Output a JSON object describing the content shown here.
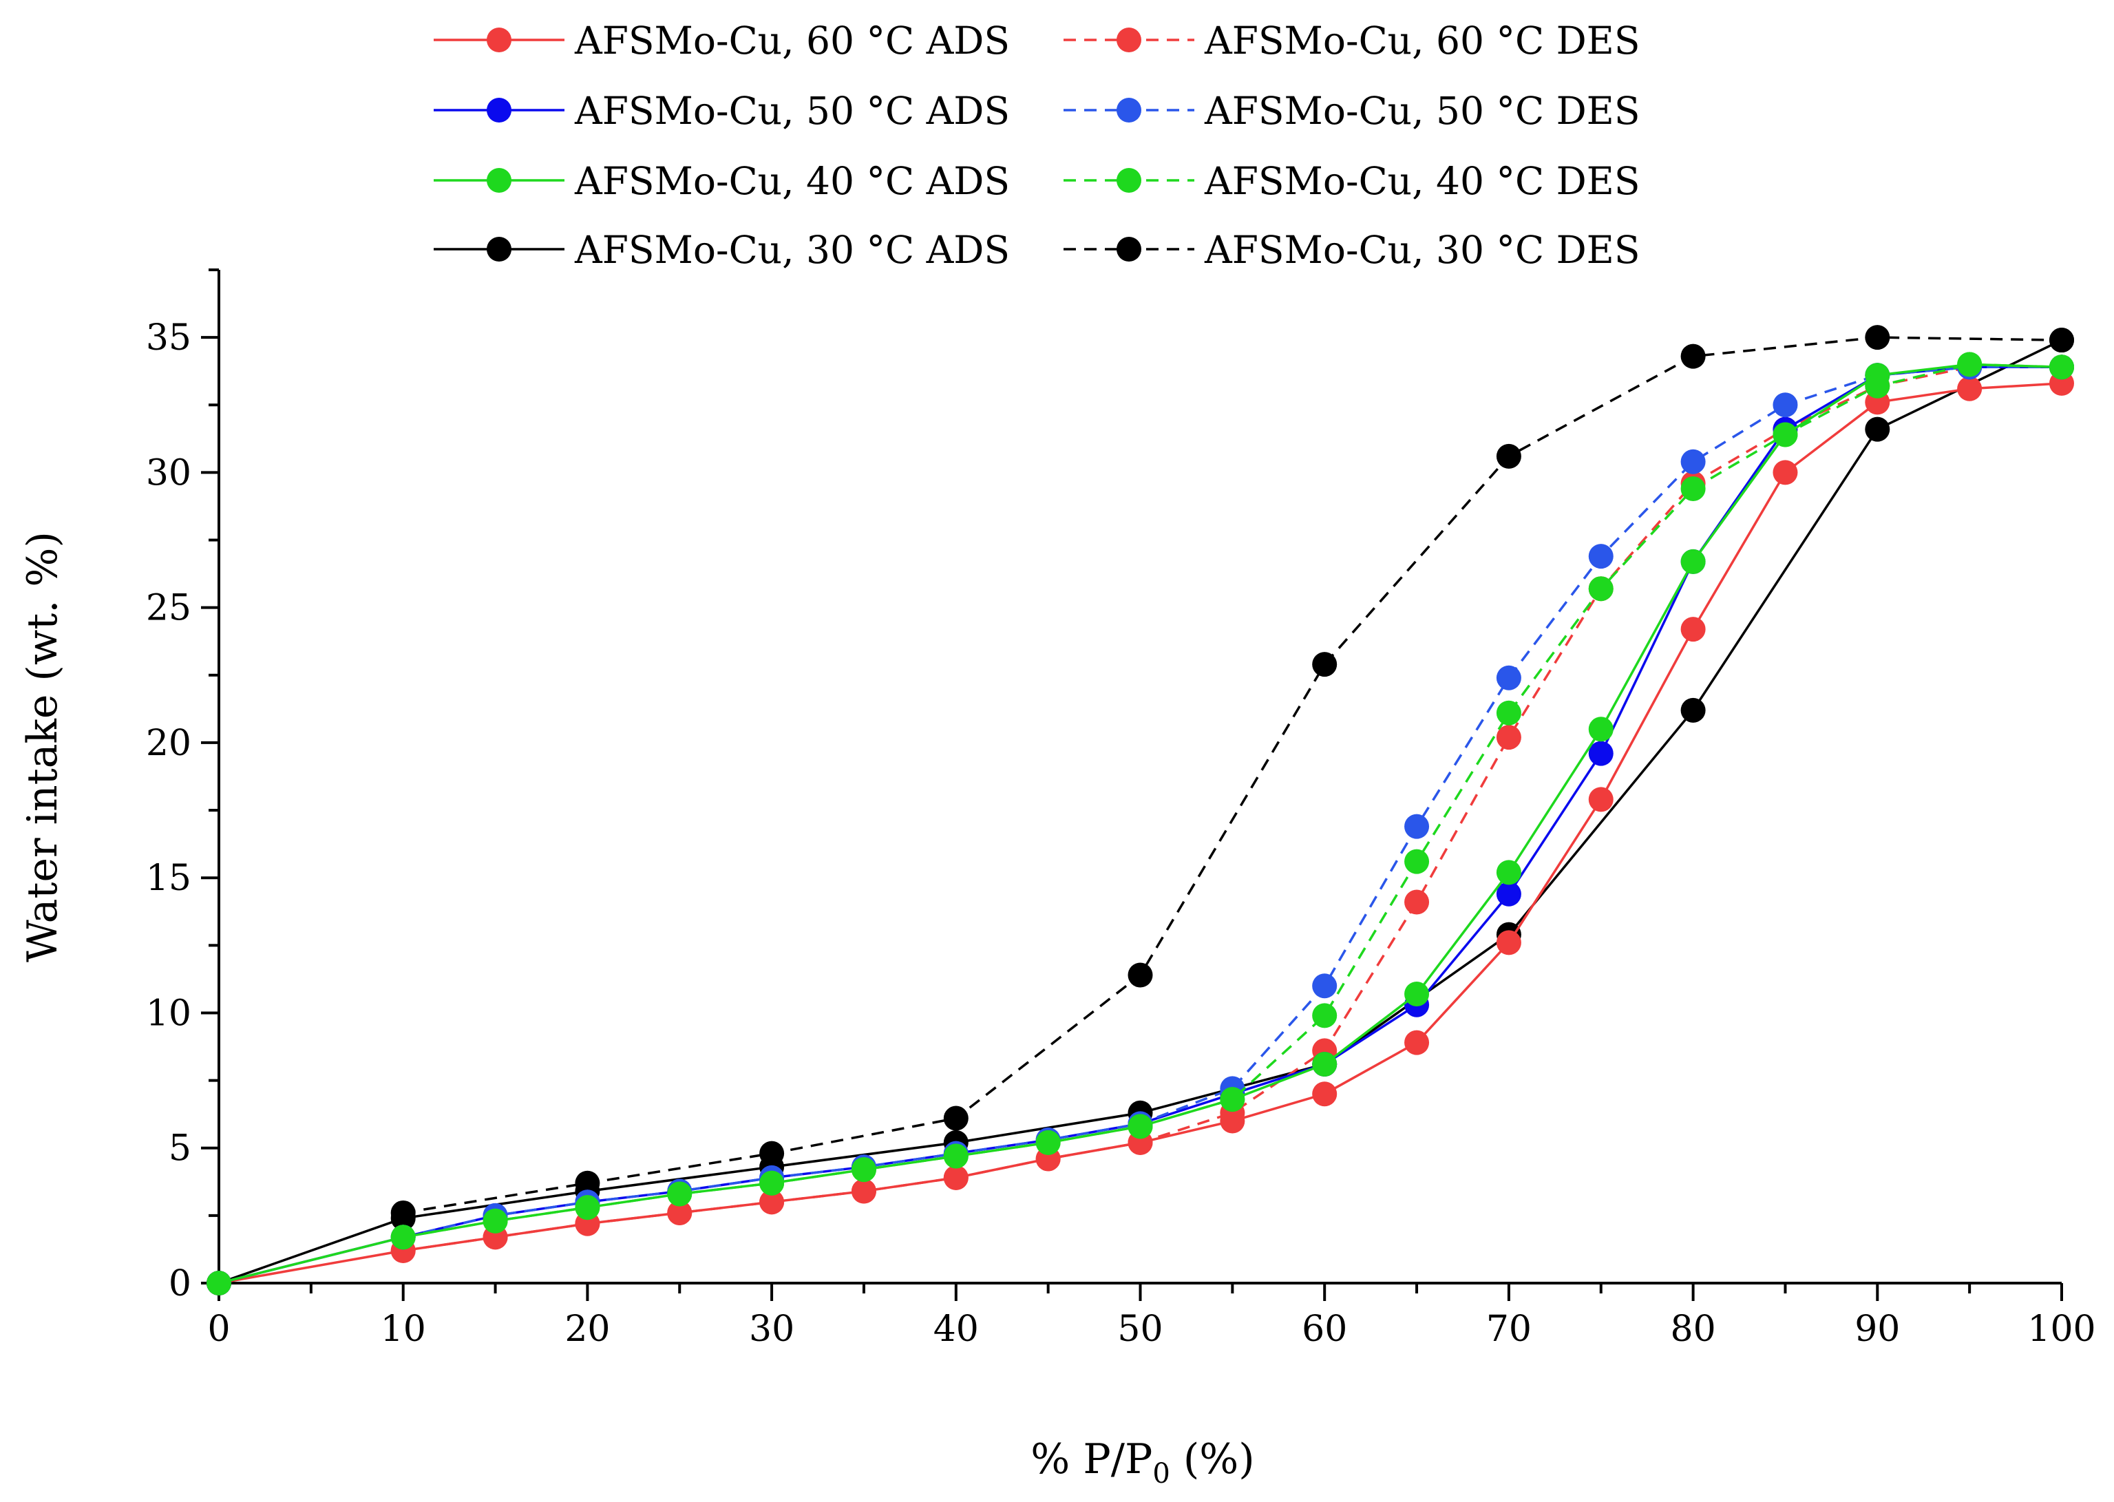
{
  "chart_data": {
    "type": "line",
    "title": "",
    "xlabel": "% P/P",
    "xlabel_subscript": "0",
    "xlabel_suffix": " (%)",
    "ylabel": "Water intake (wt. %)",
    "xlim": [
      0,
      100
    ],
    "ylim": [
      0,
      37.5
    ],
    "x_ticks": [
      0,
      10,
      20,
      30,
      40,
      50,
      60,
      70,
      80,
      90,
      100
    ],
    "y_ticks": [
      0,
      5,
      10,
      15,
      20,
      25,
      30,
      35
    ],
    "grid": false,
    "legend_position": "top",
    "series": [
      {
        "name": "AFSMo-Cu, 60 °C ADS",
        "color": "#f03c3c",
        "dash": "solid",
        "points": [
          [
            0,
            0
          ],
          [
            10,
            1.2
          ],
          [
            15,
            1.7
          ],
          [
            20,
            2.2
          ],
          [
            25,
            2.6
          ],
          [
            30,
            3.0
          ],
          [
            35,
            3.4
          ],
          [
            40,
            3.9
          ],
          [
            45,
            4.6
          ],
          [
            50,
            5.2
          ],
          [
            55,
            6.0
          ],
          [
            60,
            7.0
          ],
          [
            65,
            8.9
          ],
          [
            70,
            12.6
          ],
          [
            75,
            17.9
          ],
          [
            80,
            24.2
          ],
          [
            85,
            30.0
          ],
          [
            90,
            32.6
          ],
          [
            95,
            33.1
          ],
          [
            100,
            33.3
          ]
        ]
      },
      {
        "name": "AFSMo-Cu, 60 °C DES",
        "color": "#f03c3c",
        "dash": "dashed",
        "points": [
          [
            10,
            1.2
          ],
          [
            15,
            1.7
          ],
          [
            20,
            2.2
          ],
          [
            25,
            2.6
          ],
          [
            30,
            3.0
          ],
          [
            35,
            3.4
          ],
          [
            40,
            3.9
          ],
          [
            45,
            4.6
          ],
          [
            50,
            5.2
          ],
          [
            55,
            6.3
          ],
          [
            60,
            8.6
          ],
          [
            65,
            14.1
          ],
          [
            70,
            20.2
          ],
          [
            75,
            25.7
          ],
          [
            80,
            29.6
          ],
          [
            85,
            31.6
          ],
          [
            90,
            33.2
          ],
          [
            95,
            33.9
          ],
          [
            100,
            33.9
          ]
        ]
      },
      {
        "name": "AFSMo-Cu, 50 °C ADS",
        "color": "#0a0aee",
        "dash": "solid",
        "points": [
          [
            0,
            0
          ],
          [
            10,
            1.7
          ],
          [
            15,
            2.5
          ],
          [
            20,
            3.0
          ],
          [
            25,
            3.4
          ],
          [
            30,
            3.9
          ],
          [
            35,
            4.3
          ],
          [
            40,
            4.8
          ],
          [
            45,
            5.3
          ],
          [
            50,
            5.9
          ],
          [
            55,
            7.0
          ],
          [
            60,
            8.1
          ],
          [
            65,
            10.3
          ],
          [
            70,
            14.4
          ],
          [
            75,
            19.6
          ],
          [
            80,
            26.7
          ],
          [
            85,
            31.6
          ],
          [
            90,
            33.6
          ],
          [
            95,
            33.9
          ],
          [
            100,
            33.9
          ]
        ]
      },
      {
        "name": "AFSMo-Cu, 50 °C DES",
        "color": "#2a56ea",
        "dash": "dashed",
        "points": [
          [
            10,
            1.7
          ],
          [
            15,
            2.5
          ],
          [
            20,
            3.0
          ],
          [
            25,
            3.4
          ],
          [
            30,
            3.9
          ],
          [
            35,
            4.3
          ],
          [
            40,
            4.8
          ],
          [
            45,
            5.3
          ],
          [
            50,
            5.9
          ],
          [
            55,
            7.2
          ],
          [
            60,
            11.0
          ],
          [
            65,
            16.9
          ],
          [
            70,
            22.4
          ],
          [
            75,
            26.9
          ],
          [
            80,
            30.4
          ],
          [
            85,
            32.5
          ],
          [
            90,
            33.6
          ],
          [
            95,
            33.9
          ],
          [
            100,
            33.9
          ]
        ]
      },
      {
        "name": "AFSMo-Cu, 40 °C ADS",
        "color": "#1ed81e",
        "dash": "solid",
        "points": [
          [
            0,
            0
          ],
          [
            10,
            1.7
          ],
          [
            15,
            2.3
          ],
          [
            20,
            2.8
          ],
          [
            25,
            3.3
          ],
          [
            30,
            3.7
          ],
          [
            35,
            4.2
          ],
          [
            40,
            4.7
          ],
          [
            45,
            5.2
          ],
          [
            50,
            5.8
          ],
          [
            55,
            6.8
          ],
          [
            60,
            8.1
          ],
          [
            65,
            10.7
          ],
          [
            70,
            15.2
          ],
          [
            75,
            20.5
          ],
          [
            80,
            26.7
          ],
          [
            85,
            31.4
          ],
          [
            90,
            33.6
          ],
          [
            95,
            34.0
          ],
          [
            100,
            33.9
          ]
        ]
      },
      {
        "name": "AFSMo-Cu, 40 °C DES",
        "color": "#1ed81e",
        "dash": "dashed",
        "points": [
          [
            10,
            1.7
          ],
          [
            15,
            2.3
          ],
          [
            20,
            2.8
          ],
          [
            25,
            3.3
          ],
          [
            30,
            3.7
          ],
          [
            35,
            4.2
          ],
          [
            40,
            4.7
          ],
          [
            45,
            5.2
          ],
          [
            50,
            5.8
          ],
          [
            55,
            6.8
          ],
          [
            60,
            9.9
          ],
          [
            65,
            15.6
          ],
          [
            70,
            21.1
          ],
          [
            75,
            25.7
          ],
          [
            80,
            29.4
          ],
          [
            85,
            31.4
          ],
          [
            90,
            33.2
          ],
          [
            95,
            34.0
          ],
          [
            100,
            33.9
          ]
        ]
      },
      {
        "name": "AFSMo-Cu, 30 °C ADS",
        "color": "#000000",
        "dash": "solid",
        "points": [
          [
            0,
            0
          ],
          [
            10,
            2.4
          ],
          [
            20,
            3.4
          ],
          [
            30,
            4.3
          ],
          [
            40,
            5.2
          ],
          [
            50,
            6.3
          ],
          [
            60,
            8.1
          ],
          [
            70,
            12.9
          ],
          [
            80,
            21.2
          ],
          [
            90,
            31.6
          ],
          [
            100,
            34.9
          ]
        ]
      },
      {
        "name": "AFSMo-Cu, 30 °C DES",
        "color": "#000000",
        "dash": "dashed",
        "points": [
          [
            10,
            2.6
          ],
          [
            20,
            3.7
          ],
          [
            30,
            4.8
          ],
          [
            40,
            6.1
          ],
          [
            50,
            11.4
          ],
          [
            60,
            22.9
          ],
          [
            70,
            30.6
          ],
          [
            80,
            34.3
          ],
          [
            90,
            35.0
          ],
          [
            100,
            34.9
          ]
        ]
      }
    ]
  }
}
